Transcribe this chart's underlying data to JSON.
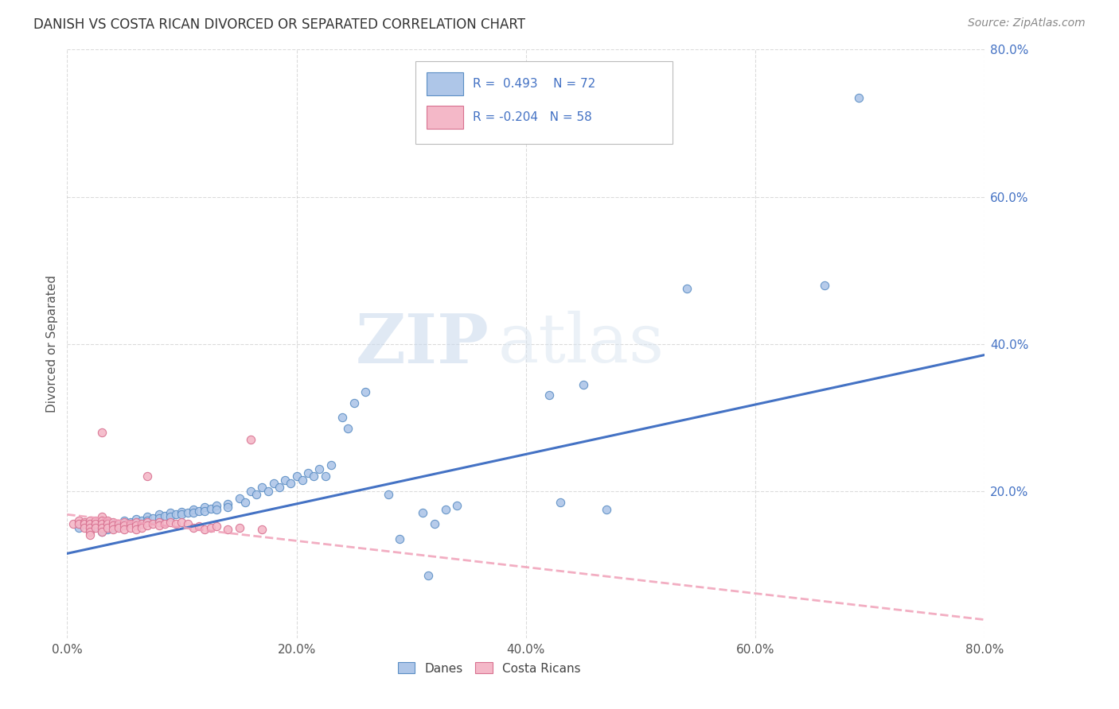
{
  "title": "DANISH VS COSTA RICAN DIVORCED OR SEPARATED CORRELATION CHART",
  "source": "Source: ZipAtlas.com",
  "ylabel": "Divorced or Separated",
  "xlim": [
    0.0,
    0.8
  ],
  "ylim": [
    0.0,
    0.8
  ],
  "xtick_labels": [
    "0.0%",
    "",
    "20.0%",
    "",
    "40.0%",
    "",
    "60.0%",
    "",
    "80.0%"
  ],
  "xtick_vals": [
    0.0,
    0.1,
    0.2,
    0.3,
    0.4,
    0.5,
    0.6,
    0.7,
    0.8
  ],
  "ytick_labels": [
    "20.0%",
    "40.0%",
    "60.0%",
    "80.0%"
  ],
  "ytick_vals": [
    0.2,
    0.4,
    0.6,
    0.8
  ],
  "legend_bottom": [
    "Danes",
    "Costa Ricans"
  ],
  "r_danes": 0.493,
  "n_danes": 72,
  "r_costa": -0.204,
  "n_costa": 58,
  "danes_color": "#aec6e8",
  "costa_color": "#f4b8c8",
  "danes_edge_color": "#5b8ec4",
  "costa_edge_color": "#d87090",
  "danes_line_color": "#4472c4",
  "costa_line_color": "#f0a0b8",
  "danes_scatter": [
    [
      0.01,
      0.15
    ],
    [
      0.015,
      0.155
    ],
    [
      0.02,
      0.148
    ],
    [
      0.025,
      0.152
    ],
    [
      0.03,
      0.145
    ],
    [
      0.03,
      0.15
    ],
    [
      0.035,
      0.148
    ],
    [
      0.04,
      0.155
    ],
    [
      0.04,
      0.15
    ],
    [
      0.045,
      0.152
    ],
    [
      0.05,
      0.16
    ],
    [
      0.05,
      0.155
    ],
    [
      0.055,
      0.158
    ],
    [
      0.06,
      0.162
    ],
    [
      0.06,
      0.157
    ],
    [
      0.065,
      0.16
    ],
    [
      0.07,
      0.165
    ],
    [
      0.07,
      0.16
    ],
    [
      0.075,
      0.163
    ],
    [
      0.08,
      0.168
    ],
    [
      0.08,
      0.163
    ],
    [
      0.085,
      0.166
    ],
    [
      0.09,
      0.17
    ],
    [
      0.09,
      0.165
    ],
    [
      0.095,
      0.168
    ],
    [
      0.1,
      0.172
    ],
    [
      0.1,
      0.168
    ],
    [
      0.105,
      0.17
    ],
    [
      0.11,
      0.175
    ],
    [
      0.11,
      0.17
    ],
    [
      0.115,
      0.173
    ],
    [
      0.12,
      0.178
    ],
    [
      0.12,
      0.173
    ],
    [
      0.125,
      0.176
    ],
    [
      0.13,
      0.18
    ],
    [
      0.13,
      0.175
    ],
    [
      0.14,
      0.182
    ],
    [
      0.14,
      0.178
    ],
    [
      0.15,
      0.19
    ],
    [
      0.155,
      0.185
    ],
    [
      0.16,
      0.2
    ],
    [
      0.165,
      0.195
    ],
    [
      0.17,
      0.205
    ],
    [
      0.175,
      0.2
    ],
    [
      0.18,
      0.21
    ],
    [
      0.185,
      0.205
    ],
    [
      0.19,
      0.215
    ],
    [
      0.195,
      0.21
    ],
    [
      0.2,
      0.22
    ],
    [
      0.205,
      0.215
    ],
    [
      0.21,
      0.225
    ],
    [
      0.215,
      0.22
    ],
    [
      0.22,
      0.23
    ],
    [
      0.225,
      0.22
    ],
    [
      0.23,
      0.235
    ],
    [
      0.24,
      0.3
    ],
    [
      0.245,
      0.285
    ],
    [
      0.25,
      0.32
    ],
    [
      0.26,
      0.335
    ],
    [
      0.28,
      0.195
    ],
    [
      0.29,
      0.135
    ],
    [
      0.31,
      0.17
    ],
    [
      0.315,
      0.085
    ],
    [
      0.32,
      0.155
    ],
    [
      0.33,
      0.175
    ],
    [
      0.34,
      0.18
    ],
    [
      0.42,
      0.33
    ],
    [
      0.43,
      0.185
    ],
    [
      0.45,
      0.345
    ],
    [
      0.47,
      0.175
    ],
    [
      0.54,
      0.475
    ],
    [
      0.66,
      0.48
    ],
    [
      0.69,
      0.735
    ]
  ],
  "costa_scatter": [
    [
      0.005,
      0.155
    ],
    [
      0.01,
      0.16
    ],
    [
      0.01,
      0.155
    ],
    [
      0.015,
      0.158
    ],
    [
      0.015,
      0.155
    ],
    [
      0.015,
      0.15
    ],
    [
      0.02,
      0.16
    ],
    [
      0.02,
      0.155
    ],
    [
      0.02,
      0.15
    ],
    [
      0.02,
      0.145
    ],
    [
      0.02,
      0.14
    ],
    [
      0.025,
      0.16
    ],
    [
      0.025,
      0.155
    ],
    [
      0.025,
      0.15
    ],
    [
      0.03,
      0.165
    ],
    [
      0.03,
      0.16
    ],
    [
      0.03,
      0.155
    ],
    [
      0.03,
      0.15
    ],
    [
      0.03,
      0.145
    ],
    [
      0.03,
      0.28
    ],
    [
      0.035,
      0.16
    ],
    [
      0.035,
      0.155
    ],
    [
      0.035,
      0.15
    ],
    [
      0.04,
      0.158
    ],
    [
      0.04,
      0.153
    ],
    [
      0.04,
      0.148
    ],
    [
      0.045,
      0.155
    ],
    [
      0.045,
      0.15
    ],
    [
      0.05,
      0.158
    ],
    [
      0.05,
      0.153
    ],
    [
      0.05,
      0.148
    ],
    [
      0.055,
      0.155
    ],
    [
      0.055,
      0.15
    ],
    [
      0.06,
      0.158
    ],
    [
      0.06,
      0.153
    ],
    [
      0.06,
      0.148
    ],
    [
      0.065,
      0.155
    ],
    [
      0.065,
      0.15
    ],
    [
      0.07,
      0.22
    ],
    [
      0.07,
      0.158
    ],
    [
      0.07,
      0.153
    ],
    [
      0.075,
      0.155
    ],
    [
      0.08,
      0.158
    ],
    [
      0.08,
      0.153
    ],
    [
      0.085,
      0.155
    ],
    [
      0.09,
      0.158
    ],
    [
      0.095,
      0.155
    ],
    [
      0.1,
      0.158
    ],
    [
      0.105,
      0.155
    ],
    [
      0.11,
      0.15
    ],
    [
      0.115,
      0.152
    ],
    [
      0.12,
      0.148
    ],
    [
      0.125,
      0.15
    ],
    [
      0.13,
      0.152
    ],
    [
      0.14,
      0.148
    ],
    [
      0.15,
      0.15
    ],
    [
      0.16,
      0.27
    ],
    [
      0.17,
      0.148
    ]
  ],
  "danes_trendline": [
    [
      0.0,
      0.115
    ],
    [
      0.8,
      0.385
    ]
  ],
  "costa_trendline": [
    [
      0.0,
      0.168
    ],
    [
      0.8,
      0.025
    ]
  ],
  "watermark_zip": "ZIP",
  "watermark_atlas": "atlas",
  "background_color": "#ffffff",
  "grid_color": "#cccccc",
  "title_color": "#333333",
  "ylabel_color": "#555555",
  "ytick_color": "#4472c4",
  "xtick_color": "#555555",
  "source_color": "#888888"
}
